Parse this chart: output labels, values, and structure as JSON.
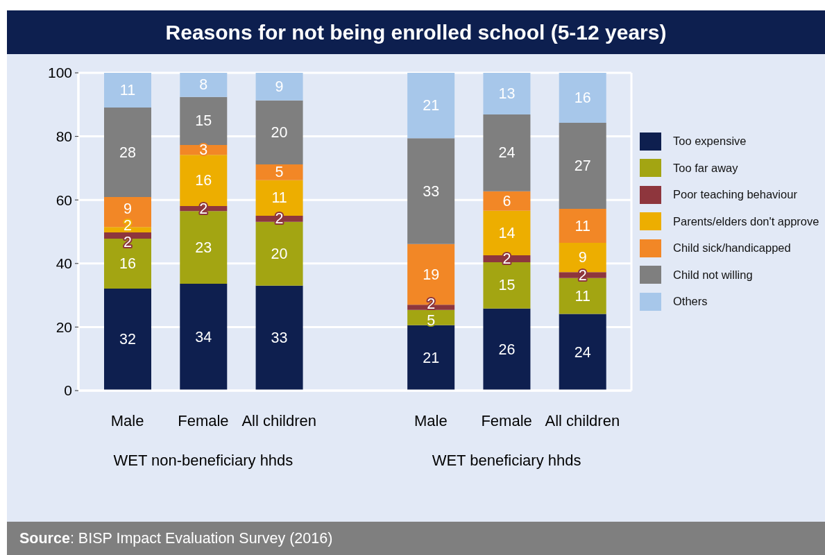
{
  "chart_data": {
    "type": "bar",
    "title": "Reasons for not being enrolled school (5-12 years)",
    "categories": [
      "Male",
      "Female",
      "All children",
      null,
      "Male",
      "Female",
      "All children"
    ],
    "series": [
      {
        "name": "Too expensive",
        "color": "#0e1f4f",
        "values": [
          32.1,
          33.6,
          33.0,
          null,
          20.6,
          25.8,
          24.1
        ],
        "value_labels": [
          "32",
          "34",
          "33",
          null,
          "21",
          "26",
          "24"
        ]
      },
      {
        "name": "Too far away",
        "color": "#a3a512",
        "values": [
          15.7,
          22.9,
          20.1,
          null,
          4.8,
          14.6,
          11.3
        ],
        "value_labels": [
          "16",
          "23",
          "20",
          null,
          "5",
          "15",
          "11"
        ]
      },
      {
        "name": "Poor teaching behaviour",
        "color": "#8e363d",
        "values": [
          2.0,
          1.6,
          1.9,
          null,
          1.6,
          2.2,
          1.9
        ],
        "value_labels": [
          "2",
          "2",
          "2",
          null,
          "2",
          "2",
          "2"
        ]
      },
      {
        "name": "Parents/elders don't approve",
        "color": "#edae00",
        "values": [
          1.7,
          16.1,
          11.2,
          null,
          null,
          14.0,
          9.2
        ],
        "value_labels": [
          "2",
          "16",
          "11",
          null,
          null,
          "14",
          "9"
        ]
      },
      {
        "name": "Child sick/handicapped",
        "color": "#f28726",
        "values": [
          9.4,
          3.1,
          5.0,
          null,
          19.1,
          6.1,
          10.7
        ],
        "value_labels": [
          "9",
          "3",
          "5",
          null,
          "19",
          "6",
          "11"
        ]
      },
      {
        "name": "Child not willing",
        "color": "#7f7f7f",
        "values": [
          28.2,
          15.1,
          20.1,
          null,
          33.3,
          24.2,
          27.1
        ],
        "value_labels": [
          "28",
          "15",
          "20",
          null,
          "33",
          "24",
          "27"
        ]
      },
      {
        "name": "Others",
        "color": "#a7c7ea",
        "values": [
          10.9,
          7.6,
          8.7,
          null,
          20.6,
          13.1,
          15.7
        ],
        "value_labels": [
          "11",
          "8",
          "9",
          null,
          "21",
          "13",
          "16"
        ]
      }
    ],
    "stacked": true,
    "ylim": [
      0,
      100
    ],
    "yticks": [
      0,
      20,
      40,
      60,
      80,
      100
    ],
    "grid": "y",
    "legend": "right",
    "annotations": [
      "WET non-beneficiary hhds",
      "WET beneficiary hhds",
      "Source: BISP Impact Evaluation Survey (2016)"
    ]
  }
}
